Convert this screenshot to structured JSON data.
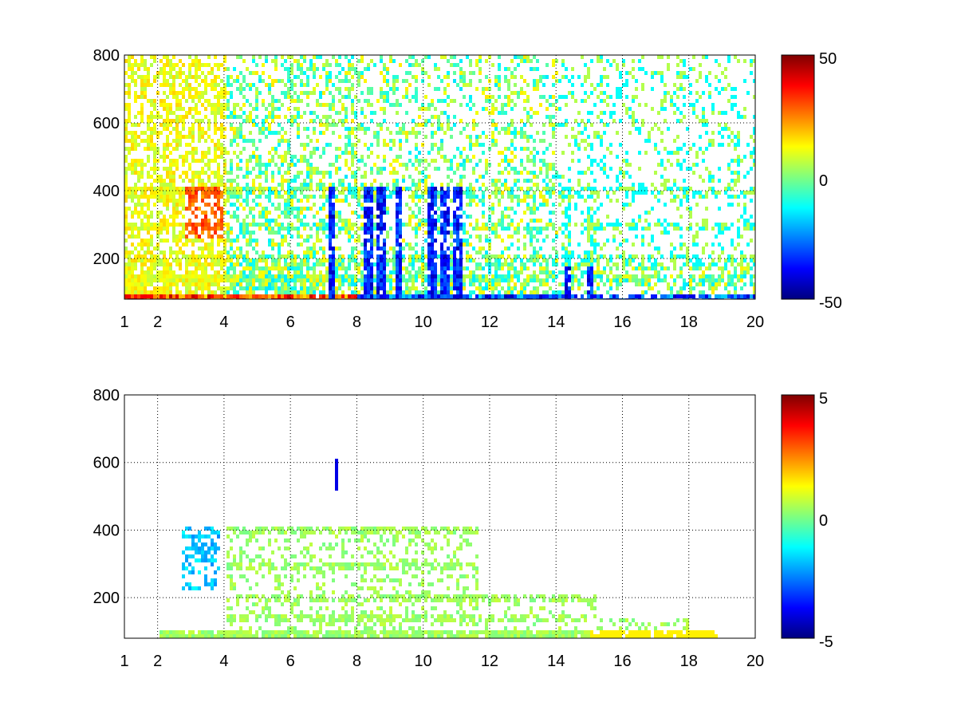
{
  "chart_data": [
    {
      "type": "heatmap",
      "x_ticks": [
        "1",
        "2",
        "4",
        "6",
        "8",
        "10",
        "12",
        "14",
        "16",
        "18",
        "20"
      ],
      "x_tick_values": [
        1,
        2,
        4,
        6,
        8,
        10,
        12,
        14,
        16,
        18,
        20
      ],
      "y_ticks": [
        "200",
        "400",
        "600",
        "800"
      ],
      "y_tick_values": [
        200,
        400,
        600,
        800
      ],
      "xlim": [
        1,
        20
      ],
      "ylim": [
        80,
        800
      ],
      "grid": true,
      "colormap": "jet",
      "colorbar": {
        "ticks": [
          "-50",
          "0",
          "50"
        ],
        "range": [
          -50,
          50
        ]
      },
      "description_free": true,
      "features": {
        "strong_negative_columns": [
          7.2,
          8.3,
          8.7,
          9.2,
          10.2,
          10.6,
          11.0,
          14.3,
          15.0
        ],
        "horizontal_bands_y": [
          90,
          150,
          200,
          300,
          400
        ],
        "arc_feature_x_range": [
          2.8,
          3.9
        ],
        "arc_feature_y_range": [
          270,
          420
        ]
      }
    },
    {
      "type": "heatmap",
      "x_ticks": [
        "1",
        "2",
        "4",
        "6",
        "8",
        "10",
        "12",
        "14",
        "16",
        "18",
        "20"
      ],
      "x_tick_values": [
        1,
        2,
        4,
        6,
        8,
        10,
        12,
        14,
        16,
        18,
        20
      ],
      "y_ticks": [
        "200",
        "400",
        "600",
        "800"
      ],
      "y_tick_values": [
        200,
        400,
        600,
        800
      ],
      "xlim": [
        1,
        20
      ],
      "ylim": [
        80,
        800
      ],
      "grid": true,
      "colormap": "jet",
      "colorbar": {
        "ticks": [
          "-5",
          "0",
          "5"
        ],
        "range": [
          -5,
          5
        ]
      },
      "features": {
        "vertical_segment": {
          "x": 7.3,
          "y_range": [
            520,
            620
          ],
          "value": -4
        },
        "arc_feature_x_range": [
          2.7,
          3.8
        ],
        "arc_feature_y_range": [
          230,
          420
        ]
      }
    }
  ]
}
